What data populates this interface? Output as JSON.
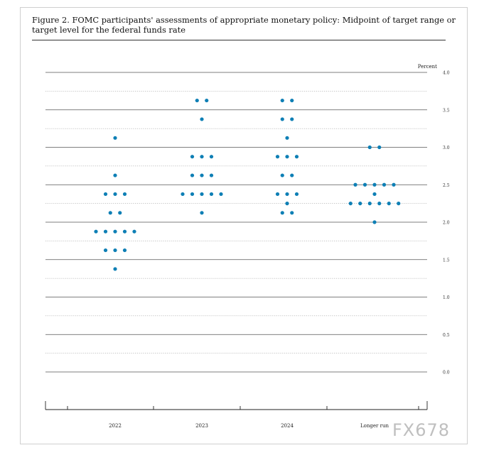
{
  "title": "Figure 2.  FOMC participants' assessments of appropriate monetary policy:  Midpoint of target range or target level for the federal funds rate",
  "watermark": "FX678",
  "chart_data": {
    "type": "scatter",
    "ylabel": "Percent",
    "ylim": [
      0.0,
      4.0
    ],
    "ytick_step": 0.25,
    "ytick_labels": [
      "0.0",
      "0.5",
      "1.0",
      "1.5",
      "2.0",
      "2.5",
      "3.0",
      "3.5",
      "4.0"
    ],
    "categories": [
      "2022",
      "2023",
      "2024",
      "Longer run"
    ],
    "dot_color": "#0e7fb5",
    "grid": true,
    "dots": [
      {
        "rate": 3.125,
        "counts": [
          1,
          0,
          1,
          0
        ]
      },
      {
        "rate": 3.0,
        "counts": [
          0,
          0,
          0,
          2
        ]
      },
      {
        "rate": 3.375,
        "counts": [
          0,
          1,
          2,
          0
        ]
      },
      {
        "rate": 3.625,
        "counts": [
          0,
          2,
          2,
          0
        ]
      },
      {
        "rate": 2.875,
        "counts": [
          0,
          3,
          3,
          0
        ]
      },
      {
        "rate": 2.625,
        "counts": [
          1,
          3,
          2,
          0
        ]
      },
      {
        "rate": 2.5,
        "counts": [
          0,
          0,
          0,
          5
        ]
      },
      {
        "rate": 2.375,
        "counts": [
          3,
          5,
          3,
          1
        ]
      },
      {
        "rate": 2.25,
        "counts": [
          0,
          0,
          1,
          6
        ]
      },
      {
        "rate": 2.125,
        "counts": [
          2,
          1,
          2,
          0
        ]
      },
      {
        "rate": 2.0,
        "counts": [
          0,
          0,
          0,
          1
        ]
      },
      {
        "rate": 1.875,
        "counts": [
          5,
          0,
          0,
          0
        ]
      },
      {
        "rate": 1.625,
        "counts": [
          3,
          0,
          0,
          0
        ]
      },
      {
        "rate": 1.375,
        "counts": [
          1,
          0,
          0,
          0
        ]
      }
    ]
  }
}
